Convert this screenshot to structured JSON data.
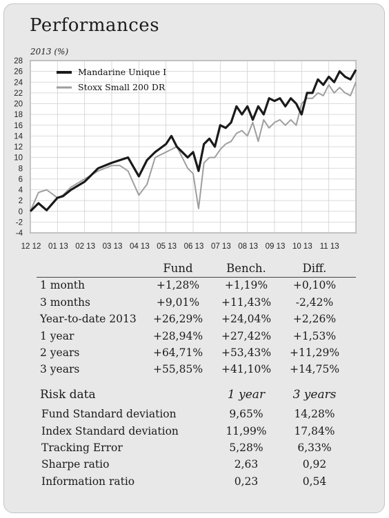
{
  "header": {
    "title": "Performances",
    "subtitle": "2013 (%)"
  },
  "chart_data": {
    "type": "line",
    "title": "Performances",
    "subtitle": "2013 (%)",
    "ylim": [
      -4,
      28
    ],
    "yticks": [
      "-4",
      "-2",
      "0",
      "2",
      "4",
      "6",
      "8",
      "10",
      "12",
      "14",
      "16",
      "18",
      "20",
      "22",
      "24",
      "26",
      "28"
    ],
    "xticks": [
      "12 12",
      "01 13",
      "02 13",
      "03 13",
      "04 13",
      "05 13",
      "06 13",
      "07 13",
      "08 13",
      "09 13",
      "10 13",
      "11 13"
    ],
    "legend_position": "top-left",
    "grid": true,
    "series": [
      {
        "name": "Mandarine Unique I",
        "color": "#1a1a1a",
        "x": [
          0,
          0.3,
          0.6,
          1,
          1.2,
          1.5,
          2,
          2.5,
          3,
          3.3,
          3.6,
          4,
          4.3,
          4.6,
          5,
          5.2,
          5.4,
          5.6,
          5.8,
          6,
          6.2,
          6.4,
          6.6,
          6.8,
          7,
          7.2,
          7.4,
          7.6,
          7.8,
          8,
          8.2,
          8.4,
          8.6,
          8.8,
          9,
          9.2,
          9.4,
          9.6,
          9.8,
          10,
          10.2,
          10.4,
          10.6,
          10.8,
          11,
          11.2,
          11.4,
          11.6,
          11.8,
          12
        ],
        "values": [
          0,
          1.5,
          0.2,
          2.5,
          2.8,
          4,
          5.5,
          8,
          9,
          9.5,
          10,
          6.5,
          9.5,
          11,
          12.5,
          14,
          12,
          11,
          10,
          11,
          7.5,
          12.5,
          13.5,
          12,
          16,
          15.5,
          16.5,
          19.5,
          18,
          19.5,
          17,
          19.5,
          18,
          21,
          20.5,
          21,
          19.5,
          21,
          20,
          18,
          22,
          22,
          24.5,
          23.5,
          25,
          24,
          26,
          25,
          24.5,
          26.3
        ]
      },
      {
        "name": "Stoxx Small 200 DR",
        "color": "#9e9e9e",
        "x": [
          0,
          0.3,
          0.6,
          1,
          1.2,
          1.5,
          2,
          2.5,
          3,
          3.3,
          3.6,
          4,
          4.3,
          4.6,
          5,
          5.2,
          5.4,
          5.6,
          5.8,
          6,
          6.2,
          6.4,
          6.6,
          6.8,
          7,
          7.2,
          7.4,
          7.6,
          7.8,
          8,
          8.2,
          8.4,
          8.6,
          8.8,
          9,
          9.2,
          9.4,
          9.6,
          9.8,
          10,
          10.2,
          10.4,
          10.6,
          10.8,
          11,
          11.2,
          11.4,
          11.6,
          11.8,
          12
        ],
        "values": [
          0,
          3.5,
          4,
          2.5,
          3,
          4.5,
          6,
          7.5,
          8.5,
          8.5,
          7.5,
          3,
          5,
          10,
          11,
          11.5,
          12,
          10,
          8,
          7,
          0.5,
          9,
          10,
          10,
          11.5,
          12.5,
          13,
          14.5,
          15,
          14,
          16.5,
          13,
          17,
          15.5,
          16.5,
          17,
          16,
          17,
          16,
          20,
          21,
          21,
          22,
          21.5,
          23.5,
          22,
          23,
          22,
          21.5,
          24
        ]
      }
    ]
  },
  "table": {
    "headers": [
      "Fund",
      "Bench.",
      "Diff."
    ],
    "rows": [
      {
        "label": "1 month",
        "fund": "+1,28%",
        "bench": "+1,19%",
        "diff": "+0,10%"
      },
      {
        "label": "3 months",
        "fund": "+9,01%",
        "bench": "+11,43%",
        "diff": "-2,42%"
      },
      {
        "label": "Year-to-date 2013",
        "fund": "+26,29%",
        "bench": "+24,04%",
        "diff": "+2,26%"
      },
      {
        "label": "1 year",
        "fund": "+28,94%",
        "bench": "+27,42%",
        "diff": "+1,53%"
      },
      {
        "label": "2 years",
        "fund": "+64,71%",
        "bench": "+53,43%",
        "diff": "+11,29%"
      },
      {
        "label": "3 years",
        "fund": "+55,85%",
        "bench": "+41,10%",
        "diff": "+14,75%"
      }
    ]
  },
  "risk": {
    "title": "Risk data",
    "col1": "1 year",
    "col2": "3 years",
    "rows": [
      {
        "label": "Fund Standard deviation",
        "v1": "9,65%",
        "v2": "14,28%"
      },
      {
        "label": "Index Standard deviation",
        "v1": "11,99%",
        "v2": "17,84%"
      },
      {
        "label": "Tracking Error",
        "v1": "5,28%",
        "v2": "6,33%"
      },
      {
        "label": "Sharpe ratio",
        "v1": "2,63",
        "v2": "0,92"
      },
      {
        "label": "Information ratio",
        "v1": "0,23",
        "v2": "0,54"
      }
    ]
  }
}
